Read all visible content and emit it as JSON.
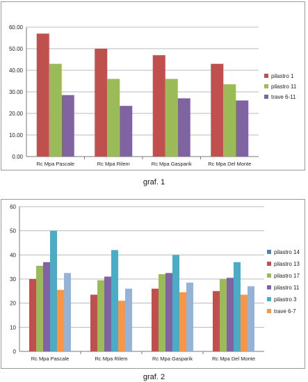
{
  "captions": {
    "chart1": "graf. 1",
    "chart2": "graf. 2"
  },
  "chart_data": [
    {
      "type": "bar",
      "categories": [
        "Rc Mpa Pascale",
        "Rc Mpa Rilem",
        "Rc Mpa Gasparik",
        "Rc Mpa Del Monte"
      ],
      "ylim": [
        0,
        60
      ],
      "yticks": [
        "0.00",
        "10.00",
        "20.00",
        "30.00",
        "40.00",
        "50.00",
        "60.00"
      ],
      "grid": true,
      "legend_position": "right",
      "series": [
        {
          "name": "pilastro 1",
          "color": "#c0504d",
          "values": [
            57,
            50,
            47,
            43
          ]
        },
        {
          "name": "pilastro 11",
          "color": "#9bbb59",
          "values": [
            43,
            36,
            36,
            33.5
          ]
        },
        {
          "name": "trave 6-11",
          "color": "#8064a2",
          "values": [
            28.5,
            23.5,
            27,
            26
          ]
        }
      ]
    },
    {
      "type": "bar",
      "categories": [
        "Rc Mpa Pascale",
        "Rc Mpa Rilem",
        "Rc Mpa Gasparik",
        "Rc Mpa Del Monte"
      ],
      "ylim": [
        0,
        60
      ],
      "yticks": [
        "0",
        "10",
        "20",
        "30",
        "40",
        "50",
        "60"
      ],
      "grid": true,
      "legend_position": "right",
      "series": [
        {
          "name": "",
          "color": "#c0504d",
          "values": [
            30,
            23.5,
            26,
            25
          ]
        },
        {
          "name": "",
          "color": "#9bbb59",
          "values": [
            35.5,
            29.5,
            32,
            30
          ]
        },
        {
          "name": "",
          "color": "#8064a2",
          "values": [
            37,
            31,
            32.5,
            30.5
          ]
        },
        {
          "name": "",
          "color": "#4bacc6",
          "values": [
            50,
            42,
            40,
            37
          ]
        },
        {
          "name": "",
          "color": "#f79646",
          "values": [
            25.5,
            21,
            24.5,
            23.5
          ]
        },
        {
          "name": "",
          "color": "#95b3d7",
          "values": [
            32.5,
            26,
            28.5,
            27
          ]
        }
      ],
      "legend": [
        {
          "label": "pilastro 14",
          "color": "#4f81bd"
        },
        {
          "label": "pilastro 13",
          "color": "#c0504d"
        },
        {
          "label": "pilastro 17",
          "color": "#9bbb59"
        },
        {
          "label": "pilastro 11",
          "color": "#8064a2"
        },
        {
          "label": "pilastro 3",
          "color": "#4bacc6"
        },
        {
          "label": "trave 6-7",
          "color": "#f79646"
        }
      ]
    }
  ]
}
